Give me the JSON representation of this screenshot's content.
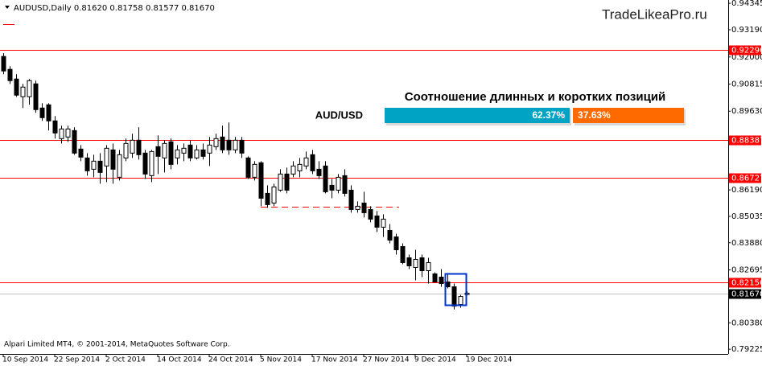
{
  "chart_data": {
    "type": "candlestick",
    "header": "AUDUSD,Daily  0.81620 0.81758 0.81577 0.81670",
    "watermark": "TradeLikeaPro.ru",
    "footer": "Alpari Limited MT4, © 2001-2014, MetaQuotes Software Corp.",
    "categories": [
      "10 Sep 2014",
      null,
      null,
      null,
      null,
      null,
      null,
      null,
      "22 Sep 2014",
      null,
      null,
      null,
      null,
      null,
      null,
      null,
      "2 Oct 2014",
      null,
      null,
      null,
      null,
      null,
      null,
      null,
      "14 Oct 2014",
      null,
      null,
      null,
      null,
      null,
      null,
      null,
      "24 Oct 2014",
      null,
      null,
      null,
      null,
      null,
      null,
      null,
      "5 Nov 2014",
      null,
      null,
      null,
      null,
      null,
      null,
      null,
      "17 Nov 2014",
      null,
      null,
      null,
      null,
      null,
      null,
      null,
      "27 Nov 2014",
      null,
      null,
      null,
      null,
      null,
      null,
      null,
      "9 Dec 2014",
      null,
      null,
      null,
      null,
      null,
      null,
      null,
      "19 Dec 2014"
    ],
    "open": [
      0.92022,
      0.91459,
      0.91036,
      0.90262,
      0.90262,
      0.90825,
      0.89769,
      0.8991,
      0.89206,
      0.88432,
      0.88502,
      0.88784,
      0.87974,
      0.87587,
      0.87094,
      0.87446,
      0.87235,
      0.87939,
      0.86742,
      0.87587,
      0.87798,
      0.88361,
      0.87798,
      0.86812,
      0.8808,
      0.87587,
      0.88291,
      0.87587,
      0.87798,
      0.8815,
      0.87587,
      0.87939,
      0.87798,
      0.8808,
      0.88502,
      0.88361,
      0.87939,
      0.88361,
      0.87587,
      0.86742,
      0.87376,
      0.86038,
      0.85616,
      0.86179,
      0.86883,
      0.86883,
      0.87024,
      0.87235,
      0.87728,
      0.87094,
      0.87235,
      0.8639,
      0.86179,
      0.86812,
      0.86179,
      0.85334,
      0.85616,
      0.85334,
      0.85052,
      0.8456,
      0.84419,
      0.84137,
      0.83715,
      0.83222,
      0.828,
      0.83222,
      0.82659,
      0.82518,
      0.82377,
      0.82166,
      0.81955,
      0.8118,
      0.8162
    ],
    "high": [
      0.92163,
      0.916,
      0.91248,
      0.90825,
      0.91036,
      0.90966,
      0.8998,
      0.8998,
      0.89417,
      0.88995,
      0.88995,
      0.88924,
      0.8815,
      0.87798,
      0.87728,
      0.87798,
      0.8815,
      0.8822,
      0.87939,
      0.88432,
      0.88643,
      0.88924,
      0.87939,
      0.87939,
      0.88572,
      0.88361,
      0.88432,
      0.8815,
      0.8822,
      0.88361,
      0.8815,
      0.8822,
      0.88502,
      0.88643,
      0.88995,
      0.89136,
      0.88502,
      0.88502,
      0.87657,
      0.87446,
      0.87446,
      0.8639,
      0.8646,
      0.87094,
      0.87164,
      0.87446,
      0.87587,
      0.87868,
      0.87939,
      0.87446,
      0.87446,
      0.86672,
      0.86883,
      0.87094,
      0.8639,
      0.85686,
      0.86108,
      0.85475,
      0.85264,
      0.85123,
      0.847,
      0.84278,
      0.83856,
      0.83363,
      0.83574,
      0.83363,
      0.83222,
      0.82588,
      0.82729,
      0.82518,
      0.82096,
      0.81603,
      0.81758
    ],
    "low": [
      0.91248,
      0.90825,
      0.90262,
      0.89769,
      0.8991,
      0.89558,
      0.89206,
      0.88784,
      0.88432,
      0.8822,
      0.88291,
      0.87728,
      0.87446,
      0.86812,
      0.86742,
      0.8646,
      0.86531,
      0.8646,
      0.86601,
      0.87446,
      0.87587,
      0.87516,
      0.86672,
      0.86531,
      0.86883,
      0.86953,
      0.87094,
      0.87305,
      0.87446,
      0.87446,
      0.87516,
      0.87516,
      0.87235,
      0.87939,
      0.87798,
      0.87728,
      0.87798,
      0.87587,
      0.86672,
      0.86601,
      0.85475,
      0.85404,
      0.85475,
      0.86108,
      0.86038,
      0.86742,
      0.86742,
      0.87094,
      0.86883,
      0.86672,
      0.86038,
      0.85827,
      0.86038,
      0.85897,
      0.85193,
      0.85193,
      0.84982,
      0.84771,
      0.84348,
      0.84137,
      0.83856,
      0.83363,
      0.8294,
      0.82729,
      0.82236,
      0.82377,
      0.82096,
      0.82166,
      0.81955,
      0.81884,
      0.80969,
      0.8104,
      0.81577
    ],
    "close": [
      0.91388,
      0.90966,
      0.90332,
      0.90684,
      0.90966,
      0.89699,
      0.89347,
      0.89206,
      0.88678,
      0.88854,
      0.88854,
      0.87798,
      0.87622,
      0.87024,
      0.87446,
      0.86953,
      0.88009,
      0.87094,
      0.87728,
      0.8822,
      0.88361,
      0.87728,
      0.86883,
      0.87868,
      0.87657,
      0.8822,
      0.87305,
      0.87939,
      0.88009,
      0.87587,
      0.87939,
      0.87657,
      0.8815,
      0.88432,
      0.87939,
      0.87939,
      0.88361,
      0.87798,
      0.86742,
      0.87305,
      0.85827,
      0.85545,
      0.8632,
      0.86883,
      0.86179,
      0.87235,
      0.87305,
      0.87587,
      0.87024,
      0.86812,
      0.86108,
      0.86179,
      0.86742,
      0.86038,
      0.85334,
      0.85475,
      0.85193,
      0.84912,
      0.8456,
      0.84912,
      0.83996,
      0.83574,
      0.83011,
      0.8287,
      0.83152,
      0.82659,
      0.83011,
      0.82166,
      0.82096,
      0.81955,
      0.8111,
      0.81532,
      0.8167
    ],
    "bull_color": "#ffffff",
    "bear_color": "#000000",
    "ylim": [
      0.7902,
      0.9449
    ],
    "yticks": [
      0.94345,
      {
        "value": 0.9319,
        "label": "0.93190"
      },
      {
        "value": 0.92,
        "label": "0.92000"
      },
      0.90815,
      {
        "value": 0.8963,
        "label": "0.89630"
      },
      {
        "value": 0.8619,
        "label": "0.86190"
      },
      0.85035,
      {
        "value": 0.8388,
        "label": "0.83880"
      },
      0.82695,
      {
        "value": 0.8038,
        "label": "0.80380"
      },
      0.79225
    ],
    "levels": [
      0.92296,
      0.88387,
      0.86727,
      0.82156
    ],
    "level_color": "#ff0000",
    "dashed_level": 0.8544,
    "current_price": {
      "value": 0.8167,
      "label": "0.81670"
    },
    "sentiment": {
      "title": "Соотношение длинных и коротких позиций",
      "pair": "AUD/USD",
      "values": [
        62.37,
        37.63
      ],
      "value_labels": [
        "62.37%",
        "37.63%"
      ],
      "colors": [
        "#00a3c4",
        "#ff6a00"
      ]
    }
  }
}
